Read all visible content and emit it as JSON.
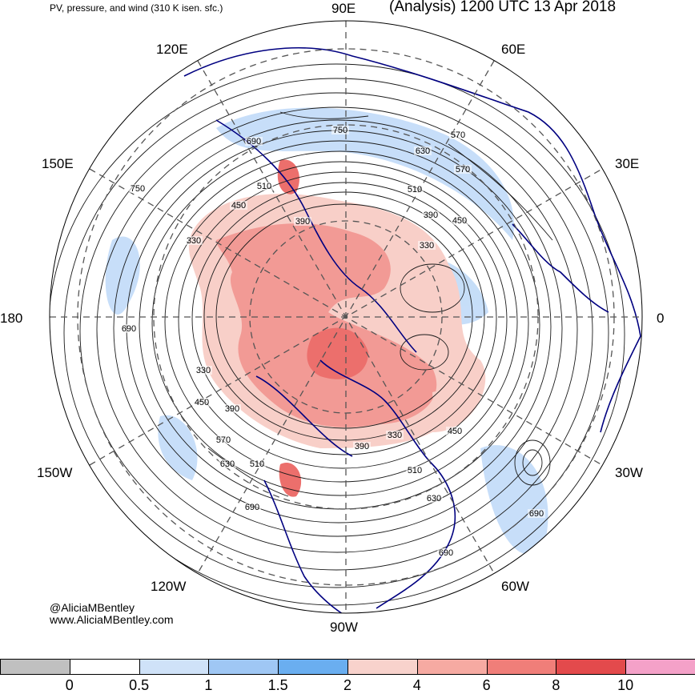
{
  "header": {
    "left_title": "PV, pressure, and wind (310 K isen. sfc.)",
    "right_title": "(Analysis) 1200 UTC 13 Apr 2018"
  },
  "longitude_labels": {
    "e90": "90E",
    "e120": "120E",
    "e60": "60E",
    "e150": "150E",
    "e30": "30E",
    "d180": "180",
    "d0": "0",
    "w150": "150W",
    "w30": "30W",
    "w120": "120W",
    "w60": "60W",
    "w90": "90W"
  },
  "credit": {
    "handle": "@AliciaMBentley",
    "website": "www.AliciaMBentley.com"
  },
  "contour_labels": [
    "690",
    "570",
    "750",
    "630",
    "570",
    "510",
    "510",
    "390",
    "450",
    "390",
    "330",
    "450",
    "330",
    "750",
    "690",
    "330",
    "450",
    "390",
    "570",
    "630",
    "510",
    "690",
    "390",
    "330",
    "450",
    "510",
    "630",
    "690",
    "690"
  ],
  "colorbar": {
    "ticks": [
      "0",
      "0.5",
      "1",
      "1.5",
      "2",
      "4",
      "6",
      "8",
      "10"
    ],
    "colors": [
      "#c0c0c0",
      "#ffffff",
      "#cfe2f8",
      "#9fc7f4",
      "#6aaef0",
      "#f8d2cc",
      "#f6aaa2",
      "#f07e79",
      "#e34a4c",
      "#f4a1c8"
    ]
  },
  "colors": {
    "pv_high": "#f29a95",
    "pv_mid": "#f8cfc8",
    "pv_low": "#b9d6f7",
    "coastline": "#000080",
    "contour": "#1a1a1a",
    "grid": "#555555"
  }
}
